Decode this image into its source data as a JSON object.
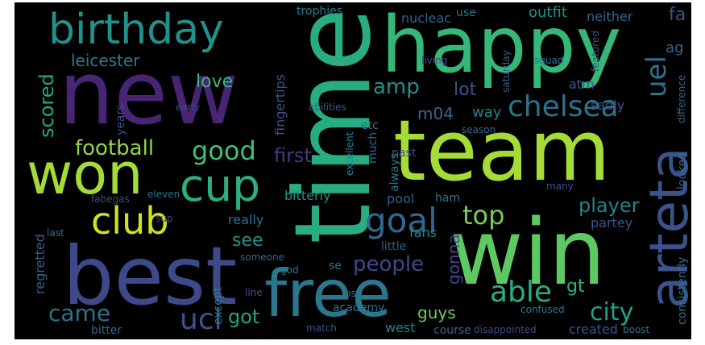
{
  "words": [
    {
      "text": "new",
      "color": "#482475"
    },
    {
      "text": "happy",
      "color": "#35b779"
    },
    {
      "text": "team",
      "color": "#a5db36"
    },
    {
      "text": "win",
      "color": "#5ec962"
    },
    {
      "text": "time",
      "color": "#27ad81"
    },
    {
      "text": "best",
      "color": "#3e4989"
    },
    {
      "text": "won",
      "color": "#a5db36"
    },
    {
      "text": "free",
      "color": "#2a788e"
    },
    {
      "text": "birthday",
      "color": "#21918c"
    },
    {
      "text": "arteta",
      "color": "#3b528b"
    },
    {
      "text": "cup",
      "color": "#2ab07f"
    },
    {
      "text": "club",
      "color": "#d2e21b"
    },
    {
      "text": "chelsea",
      "color": "#2c728e"
    },
    {
      "text": "goal",
      "color": "#31688e"
    },
    {
      "text": "good",
      "color": "#44bf70"
    },
    {
      "text": "football",
      "color": "#90d743"
    },
    {
      "text": "ucl",
      "color": "#3b528b"
    },
    {
      "text": "uel",
      "color": "#2c728e"
    },
    {
      "text": "city",
      "color": "#1fa187"
    },
    {
      "text": "able",
      "color": "#28ae80"
    },
    {
      "text": "people",
      "color": "#3e4989"
    },
    {
      "text": "top",
      "color": "#75d054"
    },
    {
      "text": "came",
      "color": "#2c728e"
    },
    {
      "text": "scored",
      "color": "#22a884"
    },
    {
      "text": "leicester",
      "color": "#2a788e"
    },
    {
      "text": "love",
      "color": "#35b779"
    },
    {
      "text": "amp",
      "color": "#21918c"
    },
    {
      "text": "lot",
      "color": "#3b528b"
    },
    {
      "text": "m04",
      "color": "#31688e"
    },
    {
      "text": "way",
      "color": "#26828e"
    },
    {
      "text": "first",
      "color": "#443983"
    },
    {
      "text": "player",
      "color": "#26828e"
    },
    {
      "text": "see",
      "color": "#21918c"
    },
    {
      "text": "got",
      "color": "#20a386"
    },
    {
      "text": "guys",
      "color": "#6ccd5a"
    },
    {
      "text": "gt",
      "color": "#2ab07f"
    },
    {
      "text": "gonna",
      "color": "#3e4989"
    },
    {
      "text": "outfit",
      "color": "#21918c"
    },
    {
      "text": "neither",
      "color": "#31688e"
    },
    {
      "text": "trophies",
      "color": "#26828e"
    },
    {
      "text": "nucleac",
      "color": "#35608d"
    },
    {
      "text": "use",
      "color": "#2c728e"
    },
    {
      "text": "sadly",
      "color": "#3b528b"
    },
    {
      "text": "atm",
      "color": "#365c8d"
    },
    {
      "text": "fingertips",
      "color": "#3b528b"
    },
    {
      "text": "bitterly",
      "color": "#21918c"
    },
    {
      "text": "really",
      "color": "#2c728e"
    },
    {
      "text": "pool",
      "color": "#35608d"
    },
    {
      "text": "ham",
      "color": "#2a788e"
    },
    {
      "text": "partey",
      "color": "#3b528b"
    },
    {
      "text": "looked",
      "color": "#31688e"
    },
    {
      "text": "consistently",
      "color": "#2c728e"
    },
    {
      "text": "created",
      "color": "#3b528b"
    },
    {
      "text": "west",
      "color": "#26828e"
    },
    {
      "text": "course",
      "color": "#31688e"
    },
    {
      "text": "disappointed",
      "color": "#3e4989"
    },
    {
      "text": "except",
      "color": "#2a788e"
    },
    {
      "text": "bitter",
      "color": "#31688e"
    },
    {
      "text": "regretted",
      "color": "#35608d"
    },
    {
      "text": "years",
      "color": "#3b528b"
    },
    {
      "text": "academy",
      "color": "#2c728e"
    },
    {
      "text": "little",
      "color": "#365c8d"
    },
    {
      "text": "fans",
      "color": "#26828e"
    },
    {
      "text": "always",
      "color": "#2a788e"
    },
    {
      "text": "much",
      "color": "#31688e"
    },
    {
      "text": "past",
      "color": "#3b528b"
    },
    {
      "text": "etc",
      "color": "#2c728e"
    },
    {
      "text": "abilities",
      "color": "#365c8d"
    },
    {
      "text": "living",
      "color": "#3e4989"
    },
    {
      "text": "squad",
      "color": "#2c728e"
    },
    {
      "text": "featured",
      "color": "#3b528b"
    },
    {
      "text": "saturday",
      "color": "#35608d"
    },
    {
      "text": "season",
      "color": "#31688e"
    },
    {
      "text": "difference",
      "color": "#31688e"
    },
    {
      "text": "early",
      "color": "#3e4989"
    },
    {
      "text": "confused",
      "color": "#2a788e"
    },
    {
      "text": "psg",
      "color": "#31688e"
    },
    {
      "text": "match",
      "color": "#3b528b"
    },
    {
      "text": "boost",
      "color": "#2c728e"
    },
    {
      "text": "excellent",
      "color": "#26828e"
    },
    {
      "text": "many",
      "color": "#3b528b"
    },
    {
      "text": "eleven",
      "color": "#2c728e"
    },
    {
      "text": "fabegas",
      "color": "#3e4989"
    },
    {
      "text": "god",
      "color": "#2a788e"
    },
    {
      "text": "someone",
      "color": "#31688e"
    },
    {
      "text": "se",
      "color": "#2c728e"
    },
    {
      "text": "line",
      "color": "#3b528b"
    },
    {
      "text": "last",
      "color": "#31688e"
    },
    {
      "text": "sup",
      "color": "#3e4989"
    },
    {
      "text": "fa",
      "color": "#3b528b"
    },
    {
      "text": "ag",
      "color": "#31688e"
    }
  ]
}
